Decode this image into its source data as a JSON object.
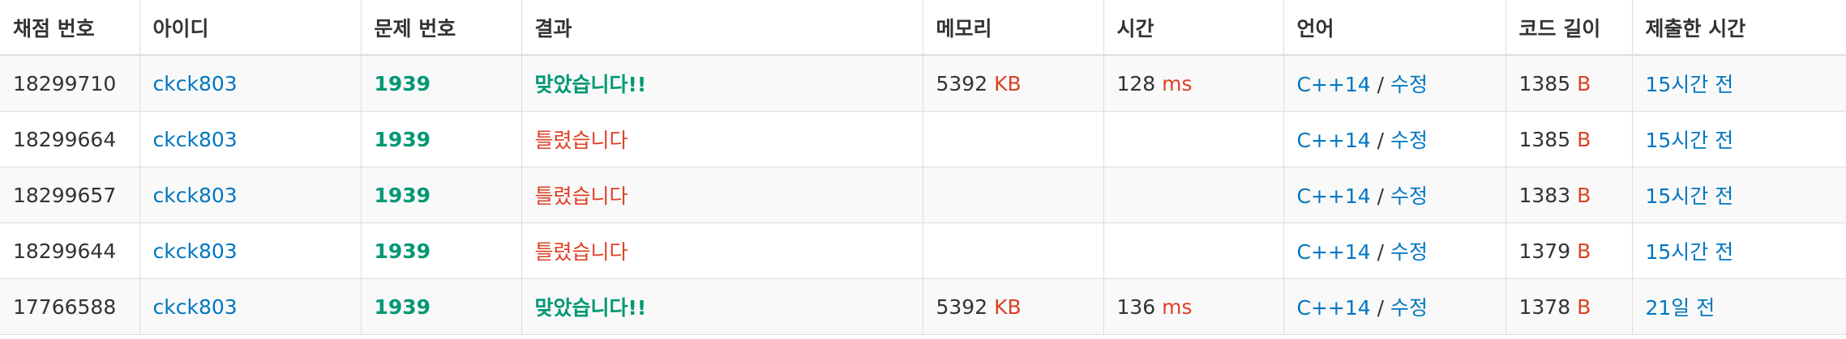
{
  "headers": {
    "submission_id": "채점 번호",
    "user_id": "아이디",
    "problem_id": "문제 번호",
    "result": "결과",
    "memory": "메모리",
    "time": "시간",
    "language": "언어",
    "code_length": "코드 길이",
    "submitted_at": "제출한 시간"
  },
  "rows": [
    {
      "submission_id": "18299710",
      "user_id": "ckck803",
      "problem_id": "1939",
      "result": "맞았습니다!!",
      "result_type": "accepted",
      "memory_value": "5392",
      "memory_unit": "KB",
      "time_value": "128",
      "time_unit": "ms",
      "language": "C++14",
      "separator": " / ",
      "edit": "수정",
      "code_length_value": "1385",
      "code_length_unit": "B",
      "submitted_at": "15시간 전"
    },
    {
      "submission_id": "18299664",
      "user_id": "ckck803",
      "problem_id": "1939",
      "result": "틀렸습니다",
      "result_type": "wrong",
      "memory_value": "",
      "memory_unit": "",
      "time_value": "",
      "time_unit": "",
      "language": "C++14",
      "separator": " / ",
      "edit": "수정",
      "code_length_value": "1385",
      "code_length_unit": "B",
      "submitted_at": "15시간 전"
    },
    {
      "submission_id": "18299657",
      "user_id": "ckck803",
      "problem_id": "1939",
      "result": "틀렸습니다",
      "result_type": "wrong",
      "memory_value": "",
      "memory_unit": "",
      "time_value": "",
      "time_unit": "",
      "language": "C++14",
      "separator": " / ",
      "edit": "수정",
      "code_length_value": "1383",
      "code_length_unit": "B",
      "submitted_at": "15시간 전"
    },
    {
      "submission_id": "18299644",
      "user_id": "ckck803",
      "problem_id": "1939",
      "result": "틀렸습니다",
      "result_type": "wrong",
      "memory_value": "",
      "memory_unit": "",
      "time_value": "",
      "time_unit": "",
      "language": "C++14",
      "separator": " / ",
      "edit": "수정",
      "code_length_value": "1379",
      "code_length_unit": "B",
      "submitted_at": "15시간 전"
    },
    {
      "submission_id": "17766588",
      "user_id": "ckck803",
      "problem_id": "1939",
      "result": "맞았습니다!!",
      "result_type": "accepted",
      "memory_value": "5392",
      "memory_unit": "KB",
      "time_value": "136",
      "time_unit": "ms",
      "language": "C++14",
      "separator": " / ",
      "edit": "수정",
      "code_length_value": "1378",
      "code_length_unit": "B",
      "submitted_at": "21일 전"
    }
  ],
  "colors": {
    "link": "#0076c0",
    "accepted": "#009874",
    "wrong": "#dd4124",
    "unit": "#dd4124",
    "border": "#dddddd",
    "stripe": "#f9f9f9"
  }
}
